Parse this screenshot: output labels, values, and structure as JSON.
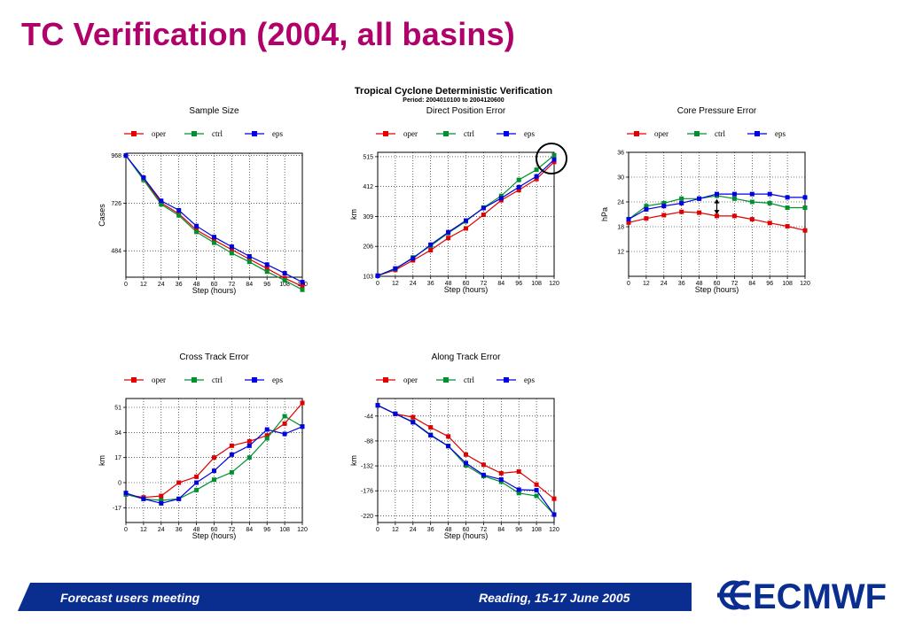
{
  "page": {
    "title": "TC Verification (2004, all basins)",
    "suptitle": "Tropical Cyclone Deterministic Verification",
    "period": "Period: 2004010100 to 2004120600"
  },
  "footer": {
    "left": "Forecast users meeting",
    "right": "Reading, 15-17 June 2005",
    "logo": "ECMWF",
    "bar_color": "#0a2e8f"
  },
  "colors": {
    "title": "#b0006a",
    "oper": "#e00000",
    "ctrl": "#009030",
    "eps": "#0000e0"
  },
  "chart_data": [
    {
      "id": "sample-size",
      "type": "line",
      "title": "Sample Size",
      "xlabel": "Step (hours)",
      "ylabel": "Cases",
      "x": [
        0,
        12,
        24,
        36,
        48,
        60,
        72,
        84,
        96,
        108,
        120
      ],
      "xlim": [
        0,
        120
      ],
      "ylim": [
        350,
        980
      ],
      "yticks": [
        484,
        726,
        968
      ],
      "grid": true,
      "legend": [
        "oper",
        "ctrl",
        "eps"
      ],
      "series": [
        {
          "name": "oper",
          "values": [
            968,
            852,
            728,
            672,
            590,
            538,
            490,
            442,
            394,
            345,
            303
          ]
        },
        {
          "name": "ctrl",
          "values": [
            968,
            844,
            720,
            664,
            580,
            525,
            472,
            428,
            378,
            334,
            286
          ]
        },
        {
          "name": "eps",
          "values": [
            968,
            856,
            738,
            690,
            610,
            554,
            505,
            456,
            414,
            370,
            325
          ]
        }
      ]
    },
    {
      "id": "direct-position-error",
      "type": "line",
      "title": "Direct Position Error",
      "xlabel": "Step (hours)",
      "ylabel": "km",
      "x": [
        0,
        12,
        24,
        36,
        48,
        60,
        72,
        84,
        96,
        108,
        120
      ],
      "xlim": [
        0,
        120
      ],
      "ylim": [
        103,
        530
      ],
      "yticks": [
        103,
        206,
        309,
        412,
        515
      ],
      "grid": true,
      "legend": [
        "oper",
        "ctrl",
        "eps"
      ],
      "series": [
        {
          "name": "oper",
          "values": [
            105,
            125,
            158,
            193,
            235,
            268,
            315,
            365,
            400,
            438,
            497
          ]
        },
        {
          "name": "ctrl",
          "values": [
            105,
            128,
            168,
            208,
            252,
            292,
            340,
            380,
            435,
            470,
            520
          ]
        },
        {
          "name": "eps",
          "values": [
            105,
            130,
            165,
            212,
            255,
            295,
            338,
            372,
            410,
            447,
            505
          ]
        }
      ],
      "annotation": "circle highlighting the 120 h point"
    },
    {
      "id": "core-pressure-error",
      "type": "line",
      "title": "Core Pressure Error",
      "xlabel": "Step (hours)",
      "ylabel": "hPa",
      "x": [
        0,
        12,
        24,
        36,
        48,
        60,
        72,
        84,
        96,
        108,
        120
      ],
      "xlim": [
        0,
        120
      ],
      "ylim": [
        6,
        36
      ],
      "yticks": [
        12,
        18,
        24,
        30,
        36
      ],
      "grid": true,
      "legend": [
        "oper",
        "ctrl",
        "eps"
      ],
      "series": [
        {
          "name": "oper",
          "values": [
            19,
            20,
            20.8,
            21.6,
            21.4,
            20.6,
            20.6,
            19.8,
            18.9,
            18.1,
            17.1
          ]
        },
        {
          "name": "ctrl",
          "values": [
            19.8,
            23,
            23.7,
            24.8,
            24.8,
            25.5,
            24.8,
            24,
            23.7,
            22.6,
            22.6
          ]
        },
        {
          "name": "eps",
          "values": [
            19.8,
            22.2,
            23,
            23.7,
            24.8,
            25.9,
            25.9,
            25.9,
            25.9,
            25.1,
            25.1
          ]
        }
      ]
    },
    {
      "id": "cross-track-error",
      "type": "line",
      "title": "Cross Track Error",
      "xlabel": "Step (hours)",
      "ylabel": "km",
      "x": [
        0,
        12,
        24,
        36,
        48,
        60,
        72,
        84,
        96,
        108,
        120
      ],
      "xlim": [
        0,
        120
      ],
      "ylim": [
        -27,
        57
      ],
      "yticks": [
        -17,
        0,
        17,
        34,
        51
      ],
      "grid": true,
      "legend": [
        "oper",
        "ctrl",
        "eps"
      ],
      "series": [
        {
          "name": "oper",
          "values": [
            -8,
            -10,
            -9,
            0,
            4,
            17,
            25,
            28,
            32,
            40,
            54
          ]
        },
        {
          "name": "ctrl",
          "values": [
            -8,
            -11,
            -12,
            -11,
            -5,
            2,
            7,
            17,
            30,
            45,
            38
          ]
        },
        {
          "name": "eps",
          "values": [
            -7,
            -11,
            -14,
            -11,
            0,
            8,
            19,
            25,
            36,
            33,
            38
          ]
        }
      ]
    },
    {
      "id": "along-track-error",
      "type": "line",
      "title": "Along Track Error",
      "xlabel": "Step (hours)",
      "ylabel": "km",
      "x": [
        0,
        12,
        24,
        36,
        48,
        60,
        72,
        84,
        96,
        108,
        120
      ],
      "xlim": [
        0,
        120
      ],
      "ylim": [
        -232,
        -13
      ],
      "yticks": [
        -220,
        -176,
        -132,
        -88,
        -44
      ],
      "grid": true,
      "legend": [
        "oper",
        "ctrl",
        "eps"
      ],
      "series": [
        {
          "name": "oper",
          "values": [
            -25,
            -40,
            -46,
            -64,
            -80,
            -112,
            -130,
            -145,
            -142,
            -165,
            -190
          ]
        },
        {
          "name": "ctrl",
          "values": [
            -25,
            -40,
            -54,
            -77,
            -97,
            -131,
            -150,
            -160,
            -180,
            -185,
            -218
          ]
        },
        {
          "name": "eps",
          "values": [
            -25,
            -40,
            -55,
            -78,
            -97,
            -127,
            -148,
            -156,
            -174,
            -175,
            -218
          ]
        }
      ]
    }
  ]
}
